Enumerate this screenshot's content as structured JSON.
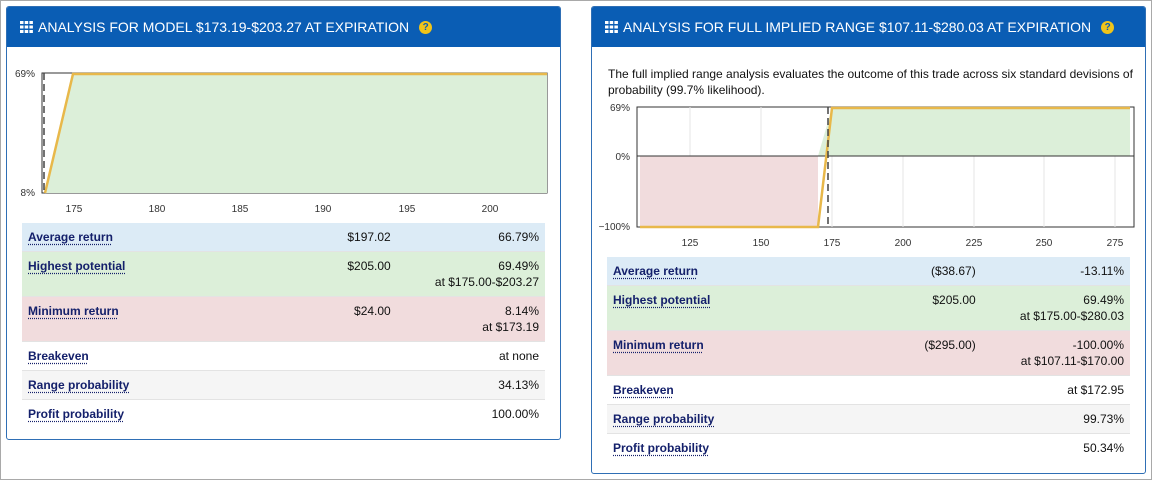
{
  "left_panel": {
    "title": "ANALYSIS FOR MODEL $173.19-$203.27 AT EXPIRATION",
    "help_icon_text": "?",
    "chart": {
      "y_labels": [
        "69%",
        "8%"
      ],
      "x_labels": [
        "175",
        "180",
        "185",
        "190",
        "195",
        "200"
      ]
    },
    "rows": [
      {
        "label": "Average return",
        "price": "$197.02",
        "value": "66.79%",
        "sub": ""
      },
      {
        "label": "Highest potential",
        "price": "$205.00",
        "value": "69.49%",
        "sub": "at $175.00-$203.27"
      },
      {
        "label": "Minimum return",
        "price": "$24.00",
        "value": "8.14%",
        "sub": "at $173.19"
      },
      {
        "label": "Breakeven",
        "price": "",
        "value": "at none",
        "sub": ""
      },
      {
        "label": "Range probability",
        "price": "",
        "value": "34.13%",
        "sub": ""
      },
      {
        "label": "Profit probability",
        "price": "",
        "value": "100.00%",
        "sub": ""
      }
    ]
  },
  "right_panel": {
    "title": "ANALYSIS FOR FULL IMPLIED RANGE $107.11-$280.03 AT EXPIRATION",
    "help_icon_text": "?",
    "intro": "The full implied range analysis evaluates the outcome of this trade across six standard devisions of probability (99.7% likelihood).",
    "chart": {
      "y_labels": [
        "69%",
        "0%",
        "−100%"
      ],
      "x_labels": [
        "125",
        "150",
        "175",
        "200",
        "225",
        "250",
        "275"
      ]
    },
    "rows": [
      {
        "label": "Average return",
        "price": "($38.67)",
        "value": "-13.11%",
        "sub": ""
      },
      {
        "label": "Highest potential",
        "price": "$205.00",
        "value": "69.49%",
        "sub": "at $175.00-$280.03"
      },
      {
        "label": "Minimum return",
        "price": "($295.00)",
        "value": "-100.00%",
        "sub": "at $107.11-$170.00"
      },
      {
        "label": "Breakeven",
        "price": "",
        "value": "at $172.95",
        "sub": ""
      },
      {
        "label": "Range probability",
        "price": "",
        "value": "99.73%",
        "sub": ""
      },
      {
        "label": "Profit probability",
        "price": "",
        "value": "50.34%",
        "sub": ""
      }
    ]
  },
  "colors": {
    "header_blue": "#0a5db4",
    "profit_fill": "#dcefd9",
    "loss_fill": "#f1dcdd",
    "payoff_line": "#e8b84a",
    "row_blue": "#dcebf6"
  }
}
